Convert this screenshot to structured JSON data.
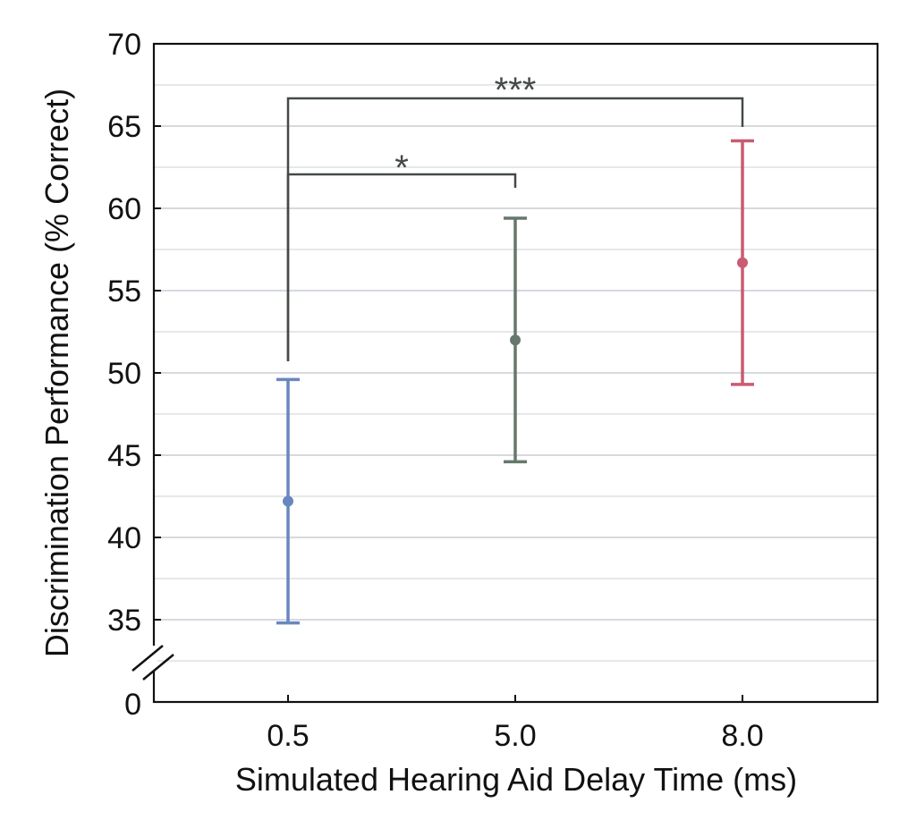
{
  "chart_data": {
    "type": "errorbar",
    "title": "",
    "xlabel": "Simulated Hearing Aid Delay Time (ms)",
    "ylabel": "Discrimination Performance (% Correct)",
    "categories": [
      "0.5",
      "5.0",
      "8.0"
    ],
    "series": [
      {
        "category": "0.5",
        "mean": 42.2,
        "lower": 34.8,
        "upper": 49.6,
        "color": "#6a86bf"
      },
      {
        "category": "5.0",
        "mean": 52.0,
        "lower": 44.6,
        "upper": 59.4,
        "color": "#66786d"
      },
      {
        "category": "8.0",
        "mean": 56.7,
        "lower": 49.3,
        "upper": 64.1,
        "color": "#c95b73"
      }
    ],
    "y_axis": {
      "break": true,
      "broken_min": 0,
      "range": [
        35,
        70
      ],
      "ticks": [
        "35",
        "40",
        "45",
        "50",
        "55",
        "60",
        "65",
        "70"
      ],
      "zero_label": "0",
      "grid": true,
      "minor_grid": true
    },
    "significance": [
      {
        "from": "0.5",
        "to": "5.0",
        "label": "*"
      },
      {
        "from": "0.5",
        "to": "8.0",
        "label": "***"
      }
    ],
    "colors": {
      "axis": "#111111",
      "grid": "#d6d9de",
      "bracket": "#444a46"
    }
  }
}
